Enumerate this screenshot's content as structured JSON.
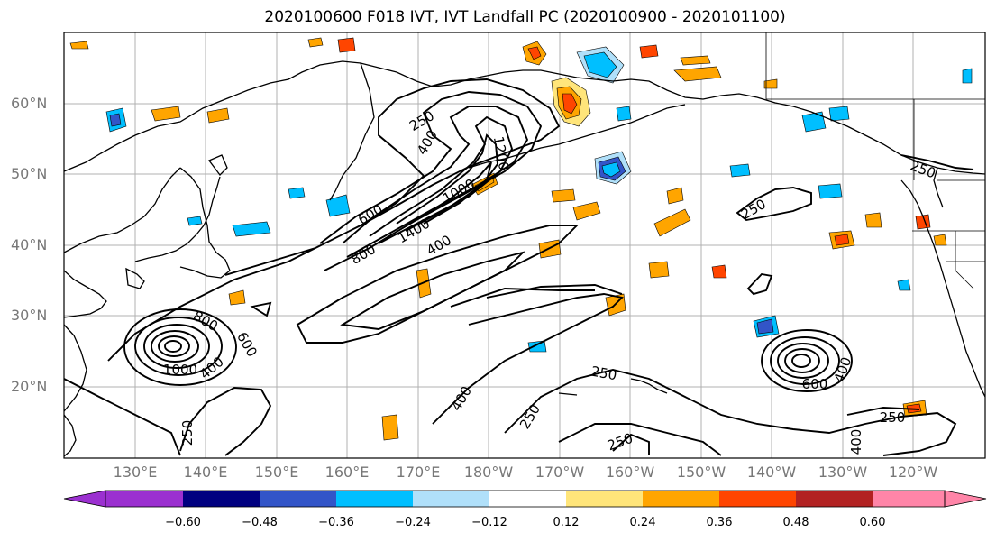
{
  "title": "2020100600 F018 IVT, IVT Landfall PC (2020100900 - 2020101100)",
  "lat_labels": [
    "60°N",
    "50°N",
    "40°N",
    "30°N",
    "20°N"
  ],
  "lon_labels": [
    "130°E",
    "140°E",
    "150°E",
    "160°E",
    "170°E",
    "180°W",
    "170°W",
    "160°W",
    "150°W",
    "140°W",
    "130°W",
    "120°W"
  ],
  "contour_labels": [
    "250",
    "400",
    "1200",
    "1000",
    "1400",
    "800",
    "600",
    "400",
    "800",
    "600",
    "400",
    "250",
    "250",
    "250",
    "400",
    "250",
    "250",
    "400",
    "600",
    "250",
    "250",
    "400",
    "1000"
  ],
  "colorbar": {
    "ticks": [
      "−0.60",
      "−0.48",
      "−0.36",
      "−0.24",
      "−0.12",
      "0.12",
      "0.24",
      "0.36",
      "0.48",
      "0.60"
    ],
    "colors": [
      "#9b30d0",
      "#000080",
      "#3255c8",
      "#00bfff",
      "#b0e0fa",
      "#ffffff",
      "#ffe57a",
      "#ffa500",
      "#ff4500",
      "#b22222",
      "#ff85a8"
    ]
  }
}
